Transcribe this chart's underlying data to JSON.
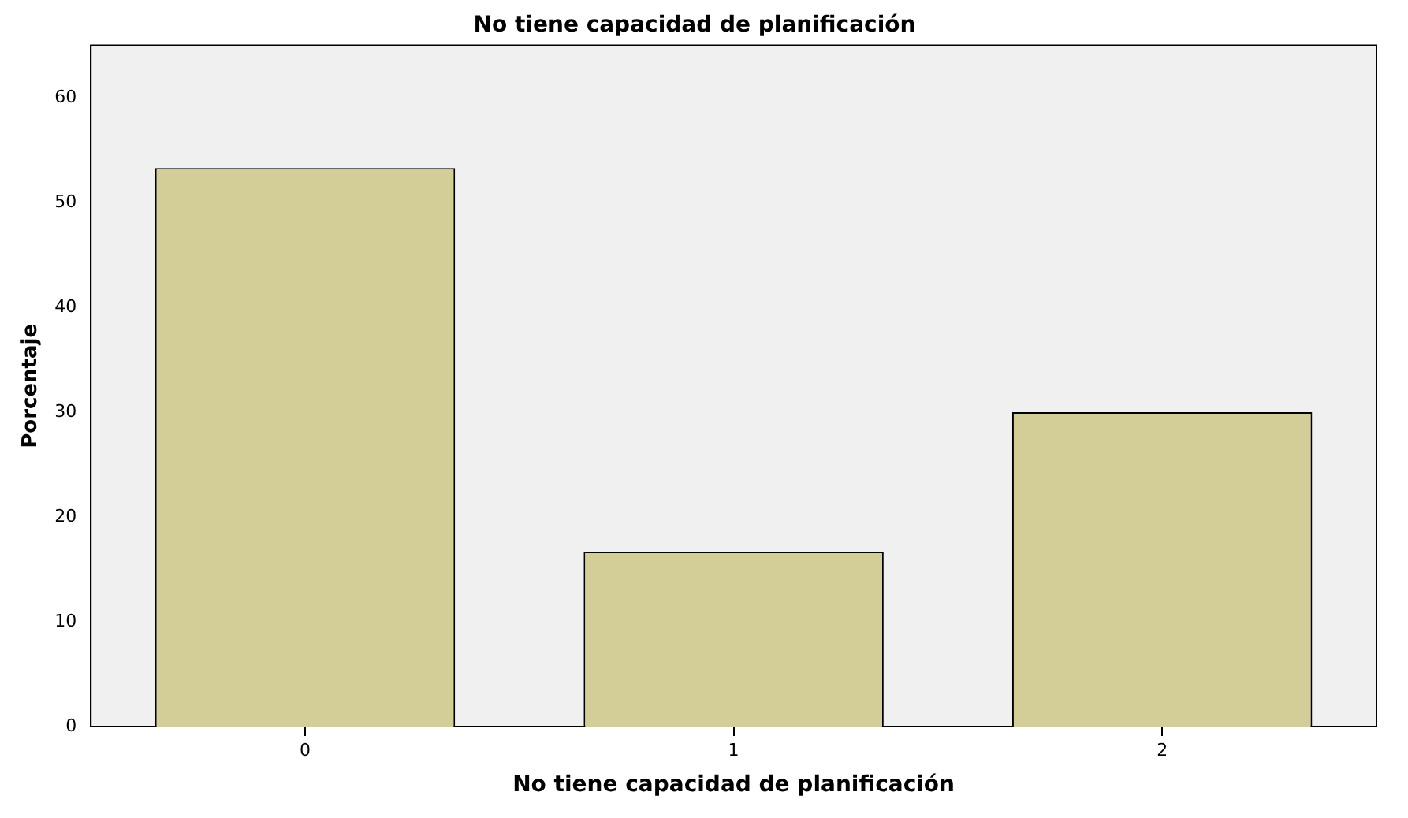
{
  "chart_data": {
    "type": "bar",
    "title": "No tiene capacidad de planificación",
    "xlabel": "No tiene capacidad de planificación",
    "ylabel": "Porcentaje",
    "categories": [
      "0",
      "1",
      "2"
    ],
    "values": [
      53.3,
      16.7,
      30.0
    ],
    "color": "#d3cd98",
    "ylim": [
      0,
      65
    ],
    "yticks": [
      0,
      10,
      20,
      30,
      40,
      50,
      60
    ],
    "grid": false,
    "legend": false
  }
}
